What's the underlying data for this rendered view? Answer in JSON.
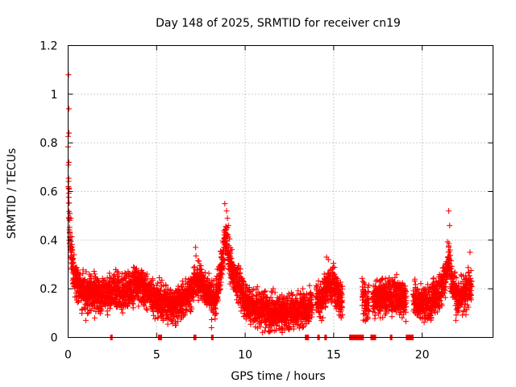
{
  "chart_data": {
    "type": "scatter",
    "title": "Day 148 of 2025, SRMTID for receiver cn19",
    "xlabel": "GPS time / hours",
    "ylabel": "SRMTID / TECUs",
    "xlim": [
      0,
      24
    ],
    "ylim": [
      0,
      1.2
    ],
    "x_ticks": [
      0,
      5,
      10,
      15,
      20
    ],
    "x_tick_labels": [
      "0",
      "5",
      "10",
      "15",
      "20"
    ],
    "y_ticks": [
      0,
      0.2,
      0.4,
      0.6,
      0.8,
      1.0,
      1.2
    ],
    "y_tick_labels": [
      "0",
      "0.2",
      "0.4",
      "0.6",
      "0.8",
      "1",
      "1.2"
    ],
    "grid": true,
    "marker": "plus",
    "color": "#ff0000",
    "series": [
      {
        "name": "SRMTID",
        "profile_x": [
          0.0,
          0.05,
          0.1,
          0.2,
          0.3,
          0.5,
          0.8,
          1.2,
          1.6,
          2.0,
          2.5,
          3.0,
          3.5,
          4.0,
          4.5,
          5.0,
          5.3,
          6.0,
          6.5,
          7.0,
          7.2,
          7.5,
          8.0,
          8.3,
          8.7,
          8.9,
          9.2,
          9.6,
          10.0,
          10.5,
          11.0,
          11.5,
          12.0,
          12.5,
          13.0,
          13.5,
          14.0,
          14.4,
          14.6,
          15.0,
          15.3,
          16.5,
          17.0,
          17.5,
          18.0,
          18.5,
          19.0,
          19.3,
          19.7,
          20.0,
          20.5,
          21.0,
          21.3,
          21.5,
          21.7,
          22.0,
          22.3,
          22.6,
          22.8
        ],
        "profile_y": [
          0.75,
          0.5,
          0.4,
          0.33,
          0.26,
          0.22,
          0.19,
          0.18,
          0.19,
          0.17,
          0.19,
          0.18,
          0.2,
          0.22,
          0.19,
          0.15,
          0.14,
          0.13,
          0.15,
          0.2,
          0.24,
          0.22,
          0.17,
          0.14,
          0.3,
          0.42,
          0.28,
          0.22,
          0.15,
          0.12,
          0.11,
          0.1,
          0.1,
          0.1,
          0.11,
          0.12,
          0.14,
          0.16,
          0.2,
          0.22,
          0.16,
          0.16,
          0.15,
          0.16,
          0.18,
          0.17,
          0.16,
          0.16,
          0.15,
          0.14,
          0.15,
          0.19,
          0.24,
          0.33,
          0.22,
          0.17,
          0.18,
          0.2,
          0.2
        ],
        "spread": 0.045,
        "gaps": [
          [
            13.8,
            14.0
          ],
          [
            15.5,
            16.6
          ],
          [
            17.0,
            17.2
          ],
          [
            19.1,
            19.5
          ]
        ],
        "outliers": [
          [
            0.02,
            1.08
          ],
          [
            0.04,
            0.94
          ],
          [
            0.05,
            0.84
          ],
          [
            0.04,
            0.72
          ],
          [
            0.06,
            0.61
          ],
          [
            0.1,
            0.51
          ],
          [
            0.15,
            0.49
          ],
          [
            8.85,
            0.55
          ],
          [
            8.95,
            0.52
          ],
          [
            9.0,
            0.49
          ],
          [
            9.05,
            0.46
          ],
          [
            7.2,
            0.37
          ],
          [
            21.5,
            0.52
          ],
          [
            21.55,
            0.46
          ],
          [
            22.7,
            0.35
          ],
          [
            14.6,
            0.33
          ],
          [
            14.7,
            0.32
          ],
          [
            1.5,
            0.08
          ],
          [
            1.0,
            0.07
          ],
          [
            8.1,
            0.04
          ],
          [
            11.5,
            0.05
          ],
          [
            21.9,
            0.07
          ]
        ],
        "zero_segments": [
          [
            2.4,
            2.5
          ],
          [
            5.1,
            5.3
          ],
          [
            7.1,
            7.25
          ],
          [
            8.1,
            8.2
          ],
          [
            13.4,
            13.6
          ],
          [
            14.1,
            14.2
          ],
          [
            14.5,
            14.6
          ],
          [
            15.9,
            16.7
          ],
          [
            17.1,
            17.4
          ],
          [
            18.2,
            18.3
          ],
          [
            19.1,
            19.5
          ]
        ]
      }
    ]
  }
}
